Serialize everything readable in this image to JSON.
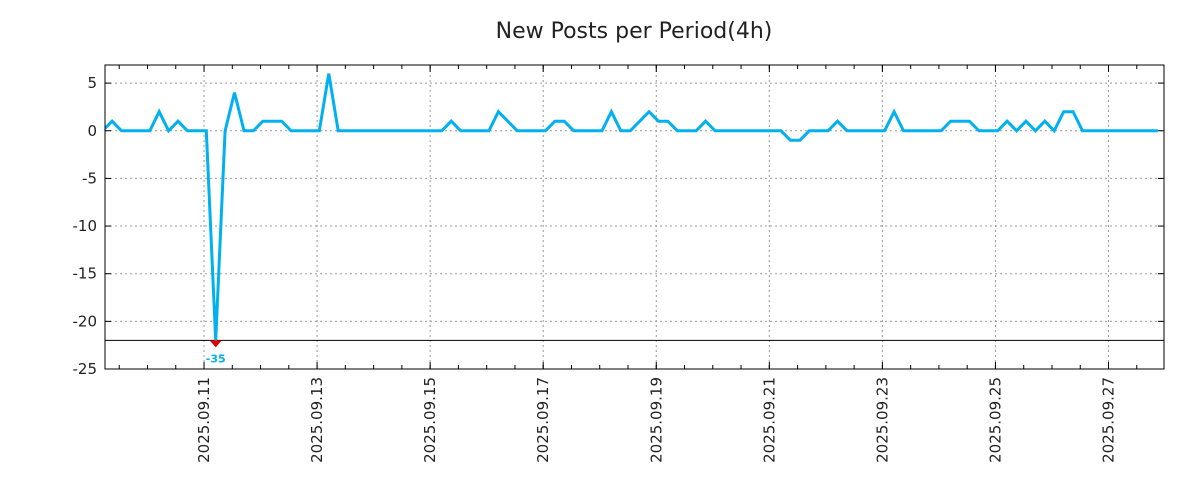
{
  "chart_data": {
    "type": "line",
    "title": "New Posts per Period(4h)",
    "xlabel": "",
    "ylabel": "",
    "ylim": [
      -25,
      6.9
    ],
    "xlim": [
      0.25,
      112.65
    ],
    "grid": true,
    "line_color": "#00b0f0",
    "clip_marker_color": "#e00000",
    "clip_value": -22,
    "clip_label": "-35",
    "yticks": [
      5,
      0,
      -5,
      -10,
      -15,
      -20,
      -25
    ],
    "ytick_labels": [
      "5",
      "0",
      "-5",
      "-10",
      "-15",
      "-20",
      "-25"
    ],
    "xticks": [
      {
        "pos": 10.76,
        "label": "2025.09.11"
      },
      {
        "pos": 22.76,
        "label": "2025.09.13"
      },
      {
        "pos": 34.76,
        "label": "2025.09.15"
      },
      {
        "pos": 46.76,
        "label": "2025.09.17"
      },
      {
        "pos": 58.76,
        "label": "2025.09.19"
      },
      {
        "pos": 70.76,
        "label": "2025.09.21"
      },
      {
        "pos": 82.76,
        "label": "2025.09.23"
      },
      {
        "pos": 94.76,
        "label": "2025.09.25"
      },
      {
        "pos": 106.76,
        "label": "2025.09.27"
      }
    ],
    "x_minor_step": 3,
    "series": [
      {
        "name": "New Posts",
        "values": [
          0,
          1,
          0,
          0,
          0,
          0,
          2,
          0,
          1,
          0,
          0,
          0,
          -35,
          0,
          4,
          0,
          0,
          1,
          1,
          1,
          0,
          0,
          0,
          0,
          6,
          0,
          0,
          0,
          0,
          0,
          0,
          0,
          0,
          0,
          0,
          0,
          0,
          1,
          0,
          0,
          0,
          0,
          2,
          1,
          0,
          0,
          0,
          0,
          1,
          1,
          0,
          0,
          0,
          0,
          2,
          0,
          0,
          1,
          2,
          1,
          1,
          0,
          0,
          0,
          1,
          0,
          0,
          0,
          0,
          0,
          0,
          0,
          0,
          -1,
          -1,
          0,
          0,
          0,
          1,
          0,
          0,
          0,
          0,
          0,
          2,
          0,
          0,
          0,
          0,
          0,
          1,
          1,
          1,
          0,
          0,
          0,
          1,
          0,
          1,
          0,
          1,
          0,
          2,
          2,
          0,
          0,
          0,
          0,
          0,
          0,
          0,
          0,
          0
        ]
      }
    ]
  }
}
